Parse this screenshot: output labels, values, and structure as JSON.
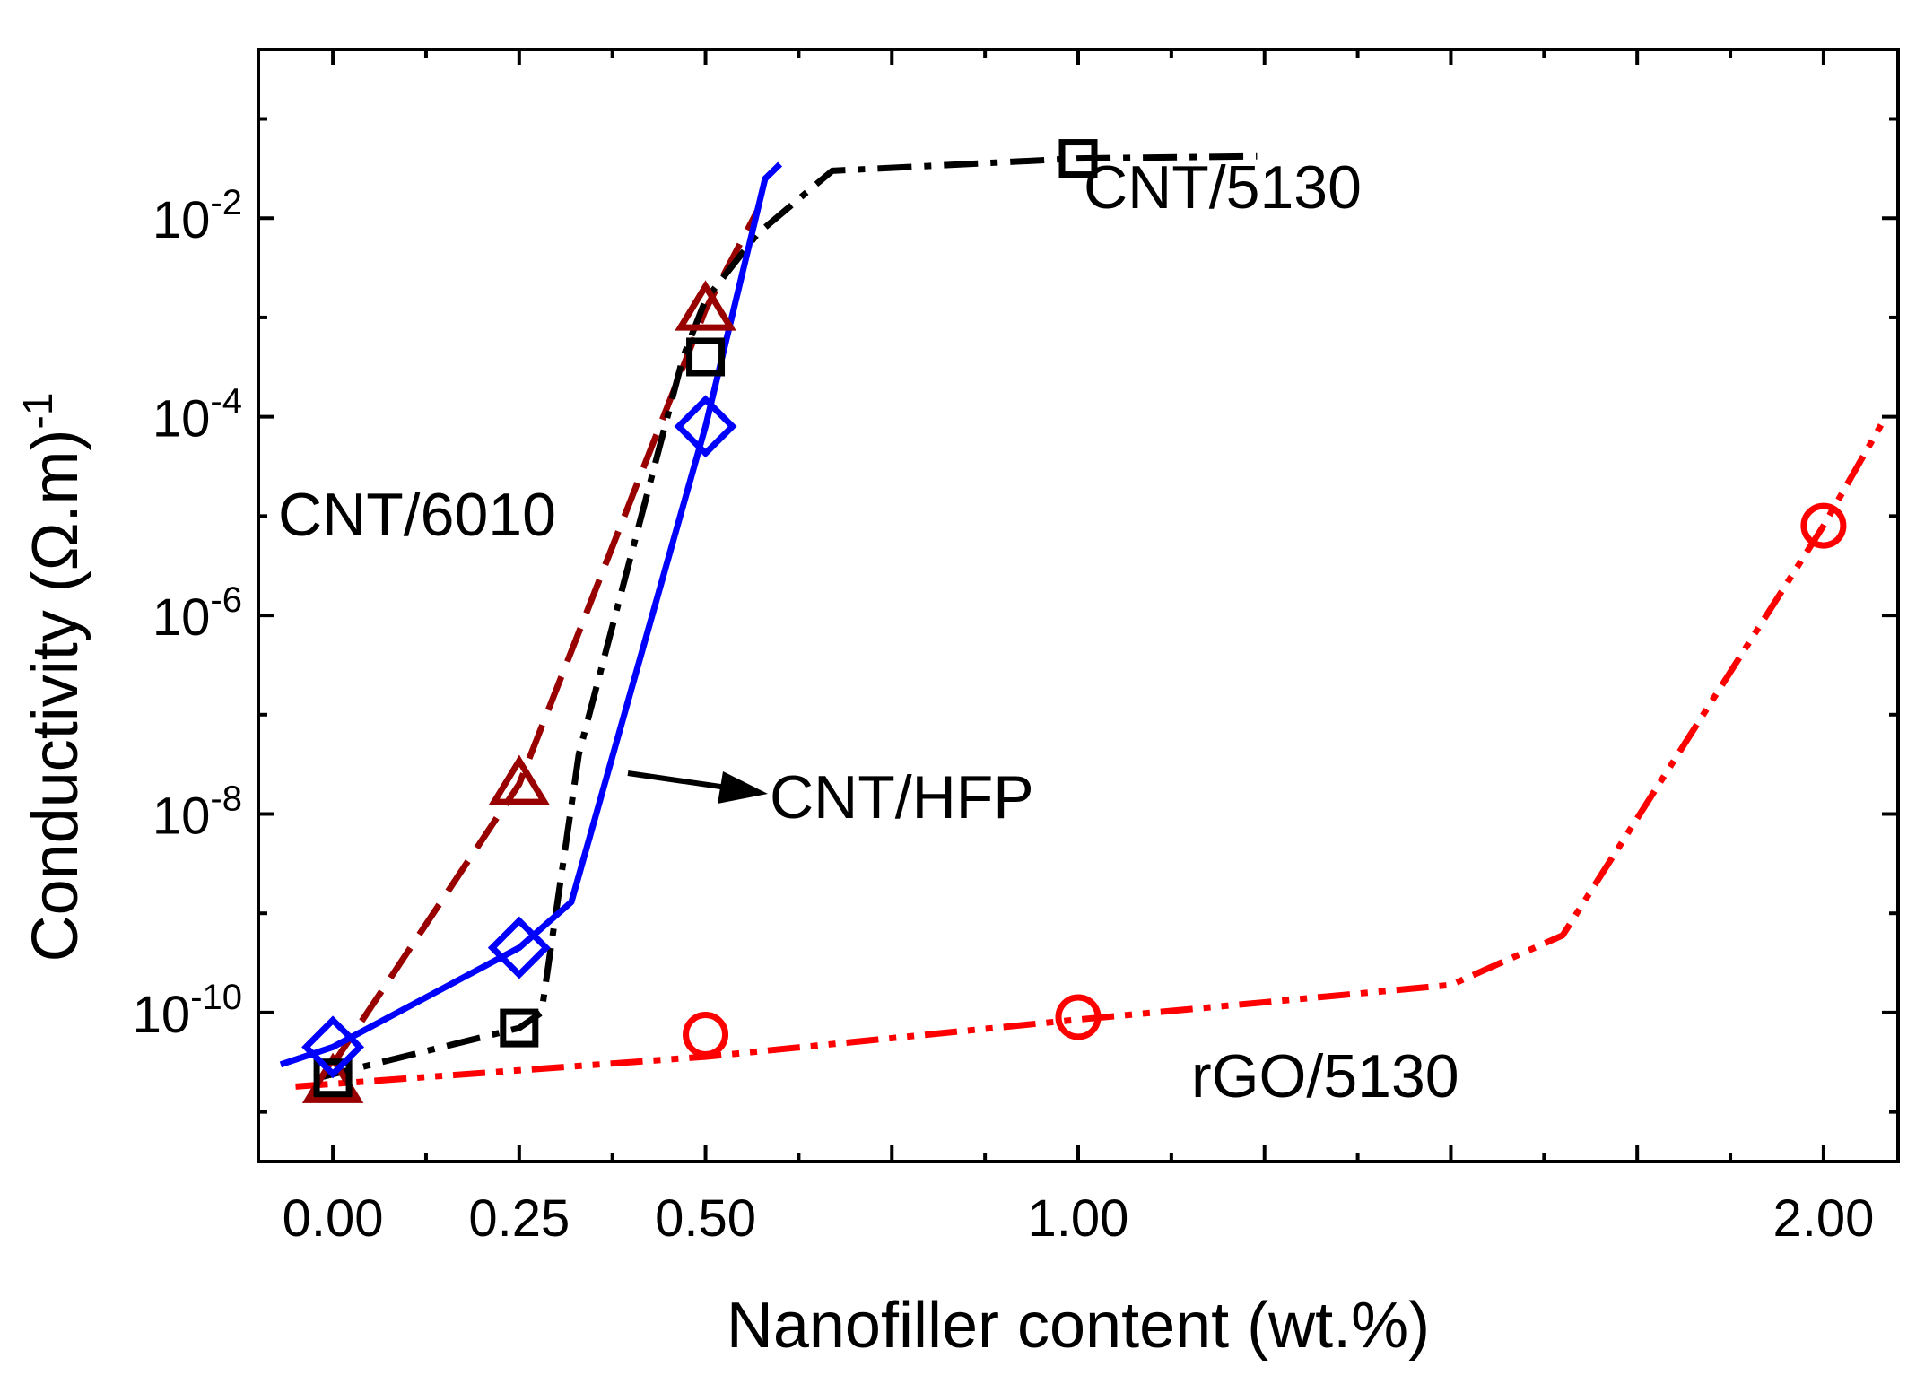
{
  "chart_data": {
    "type": "line",
    "title": "",
    "xlabel": "Nanofiller content (wt.%)",
    "ylabel_main": "Conductivity (Ω.m)",
    "ylabel_exp": "-1",
    "xlim": [
      -0.1,
      2.1
    ],
    "ylim_log10": [
      -11.5,
      -0.3
    ],
    "x_tick_labels": [
      "0.00",
      "0.25",
      "0.50",
      "1.00",
      "2.00"
    ],
    "x_tick_values": [
      0.0,
      0.25,
      0.5,
      1.0,
      2.0
    ],
    "y_tick_labels": [
      {
        "base": "10",
        "exp": "-2",
        "value": -2
      },
      {
        "base": "10",
        "exp": "-4",
        "value": -4
      },
      {
        "base": "10",
        "exp": "-6",
        "value": -6
      },
      {
        "base": "10",
        "exp": "-8",
        "value": -8
      },
      {
        "base": "10",
        "exp": "-10",
        "value": -10
      }
    ],
    "series": [
      {
        "name": "rGO/5130",
        "color": "#ff0000",
        "dash": "dashdotdot",
        "marker": "circle",
        "points": [
          [
            0.5,
            6e-11
          ],
          [
            1.0,
            9e-11
          ],
          [
            2.0,
            8e-06
          ]
        ],
        "curve": [
          [
            -0.05,
            1.8e-11
          ],
          [
            0.5,
            3.6e-11
          ],
          [
            1.0,
            8.5e-11
          ],
          [
            1.5,
            1.9e-10
          ],
          [
            1.65,
            6e-10
          ],
          [
            2.0,
            8e-06
          ],
          [
            2.08,
            9e-05
          ]
        ]
      },
      {
        "name": "CNT/6010",
        "color": "#990000",
        "dash": "dash",
        "marker": "triangle",
        "points": [
          [
            0.0,
            2e-11
          ],
          [
            0.25,
            2e-08
          ],
          [
            0.5,
            0.0012
          ]
        ],
        "curve": [
          [
            0.0,
            3e-11
          ],
          [
            0.25,
            2e-08
          ],
          [
            0.5,
            0.0012
          ],
          [
            0.57,
            0.012
          ]
        ]
      },
      {
        "name": "CNT/5130",
        "color": "#000000",
        "dash": "dashdot",
        "marker": "square",
        "points": [
          [
            0.0,
            2.2e-11
          ],
          [
            0.25,
            7e-11
          ],
          [
            0.5,
            0.0004
          ],
          [
            1.0,
            0.04
          ]
        ],
        "curve": [
          [
            -0.02,
            2.2e-11
          ],
          [
            0.25,
            7e-11
          ],
          [
            0.28,
            1e-10
          ],
          [
            0.33,
            4e-08
          ],
          [
            0.47,
            0.0004
          ],
          [
            0.5,
            0.0015
          ],
          [
            0.57,
            0.007
          ],
          [
            0.67,
            0.03
          ],
          [
            1.0,
            0.04
          ],
          [
            1.24,
            0.042
          ]
        ]
      },
      {
        "name": "CNT/HFP",
        "color": "#0000ff",
        "dash": "solid",
        "marker": "diamond",
        "points": [
          [
            0.0,
            4.5e-11
          ],
          [
            0.25,
            4.5e-10
          ],
          [
            0.5,
            8e-05
          ]
        ],
        "curve": [
          [
            -0.07,
            3e-11
          ],
          [
            0.0,
            4.5e-11
          ],
          [
            0.25,
            4.5e-10
          ],
          [
            0.32,
            1.3e-09
          ],
          [
            0.5,
            8e-05
          ],
          [
            0.58,
            0.025
          ],
          [
            0.6,
            0.035
          ]
        ]
      }
    ],
    "annotations": [
      {
        "text": "CNT/5130",
        "series": "CNT/5130"
      },
      {
        "text": "CNT/6010",
        "series": "CNT/6010"
      },
      {
        "text": "CNT/HFP",
        "series": "CNT/HFP"
      },
      {
        "text": "rGO/5130",
        "series": "rGO/5130"
      }
    ]
  }
}
